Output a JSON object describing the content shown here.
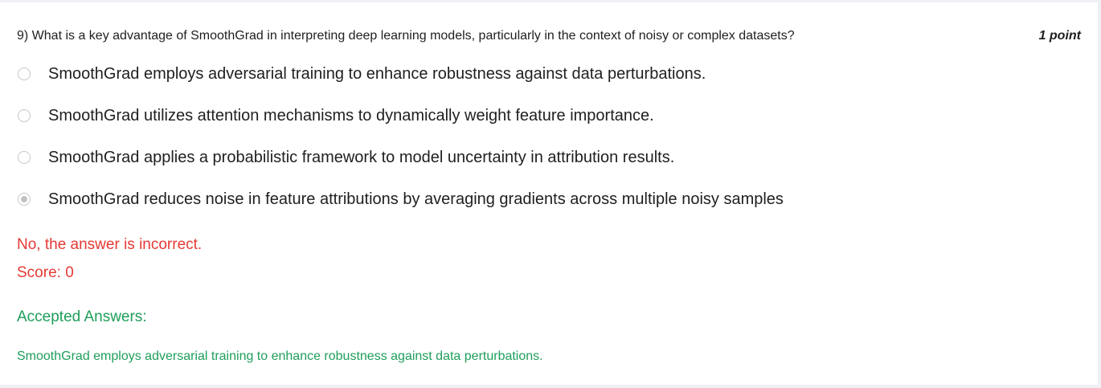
{
  "question": {
    "text": "9) What is a key advantage of SmoothGrad in interpreting deep learning models, particularly in the context of noisy or complex datasets?",
    "points": "1 point",
    "options": [
      {
        "label": "SmoothGrad employs adversarial training to enhance robustness against data perturbations.",
        "selected": false
      },
      {
        "label": "SmoothGrad utilizes attention mechanisms to dynamically weight feature importance.",
        "selected": false
      },
      {
        "label": "SmoothGrad applies a probabilistic framework to model uncertainty in attribution results.",
        "selected": false
      },
      {
        "label": "SmoothGrad reduces noise in feature attributions by averaging gradients across multiple noisy samples",
        "selected": true
      }
    ]
  },
  "feedback": {
    "message": "No, the answer is incorrect.",
    "score": "Score: 0",
    "accepted_title": "Accepted Answers:",
    "accepted_answer": "SmoothGrad employs adversarial training to enhance robustness against data perturbations."
  },
  "colors": {
    "incorrect": "#e53935",
    "accepted": "#1e9e5a"
  }
}
